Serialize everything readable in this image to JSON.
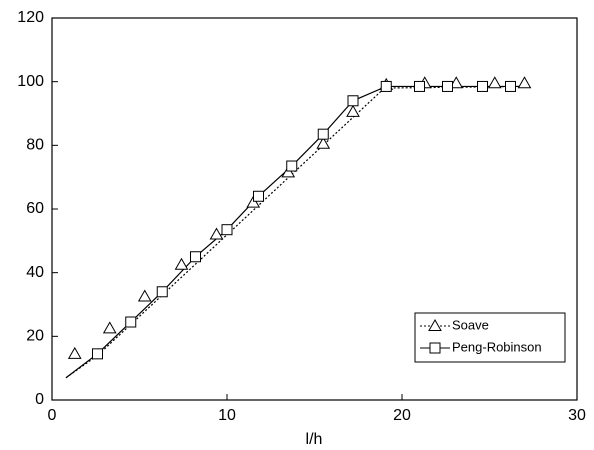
{
  "chart_data": {
    "type": "line",
    "xlabel": "l/h",
    "xlim": [
      0,
      30
    ],
    "xticks": [
      0,
      10,
      20,
      30
    ],
    "ylim": [
      0,
      120
    ],
    "yticks": [
      0,
      20,
      40,
      60,
      80,
      100,
      120
    ],
    "legend_position": "lower right",
    "series": [
      {
        "name": "Soave",
        "color": "#000000",
        "marker": "triangle",
        "linestyle": "dotted",
        "x": [
          1.3,
          3.3,
          5.3,
          7.4,
          9.4,
          11.5,
          13.5,
          15.5,
          17.2,
          19.1,
          21.3,
          23.1,
          25.3,
          27
        ],
        "values": [
          14.5,
          22.5,
          32.5,
          42.5,
          52,
          62,
          71.5,
          80.5,
          90.5,
          99,
          99.5,
          99.5,
          99.5,
          99.5
        ],
        "line_x": [
          0.8,
          2.6,
          19,
          27
        ],
        "line_values": [
          7,
          14,
          98,
          98.5
        ]
      },
      {
        "name": "Peng-Robinson",
        "color": "#000000",
        "marker": "square",
        "linestyle": "solid",
        "x": [
          2.6,
          4.5,
          6.3,
          8.2,
          10,
          11.8,
          13.7,
          15.5,
          17.2,
          19.1,
          21,
          22.6,
          24.6,
          26.2
        ],
        "values": [
          14.5,
          24.5,
          34,
          45,
          53.5,
          64,
          73.5,
          83.5,
          94,
          98.5,
          98.5,
          98.5,
          98.5,
          98.5
        ],
        "line_x": [
          0.8,
          2.6,
          4.5,
          6.3,
          8.2,
          10,
          11.8,
          13.7,
          15.5,
          17.2,
          19.1,
          27
        ],
        "line_values": [
          7,
          14.5,
          24.5,
          34,
          45,
          53.5,
          64,
          73.5,
          83.5,
          94,
          98.5,
          98.5
        ]
      }
    ]
  }
}
